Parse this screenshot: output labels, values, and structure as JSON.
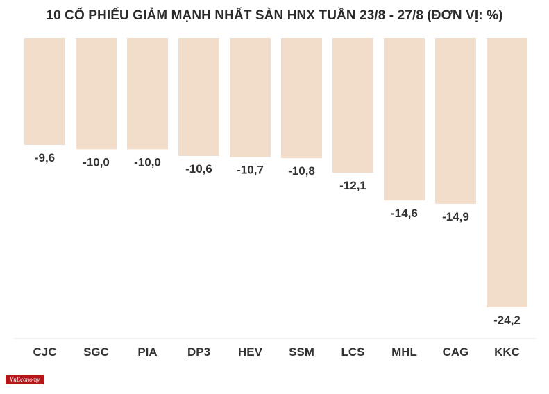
{
  "chart_data": {
    "type": "bar",
    "title": "10 CỔ PHIẾU GIẢM MẠNH NHẤT SÀN HNX TUẦN 23/8 - 27/8 (ĐƠN VỊ: %)",
    "categories": [
      "CJC",
      "SGC",
      "PIA",
      "DP3",
      "HEV",
      "SSM",
      "LCS",
      "MHL",
      "CAG",
      "KKC"
    ],
    "values": [
      -9.6,
      -10.0,
      -10.0,
      -10.6,
      -10.7,
      -10.8,
      -12.1,
      -14.6,
      -14.9,
      -24.2
    ],
    "value_labels": [
      "-9,6",
      "-10,0",
      "-10,0",
      "-10,6",
      "-10,7",
      "-10,8",
      "-12,1",
      "-14,6",
      "-14,9",
      "-24,2"
    ],
    "xlabel": "",
    "ylabel": "",
    "ylim": [
      -24.2,
      0
    ],
    "grid": false,
    "bar_color": "#f2dcca"
  },
  "logo_text": "VnEconomy"
}
